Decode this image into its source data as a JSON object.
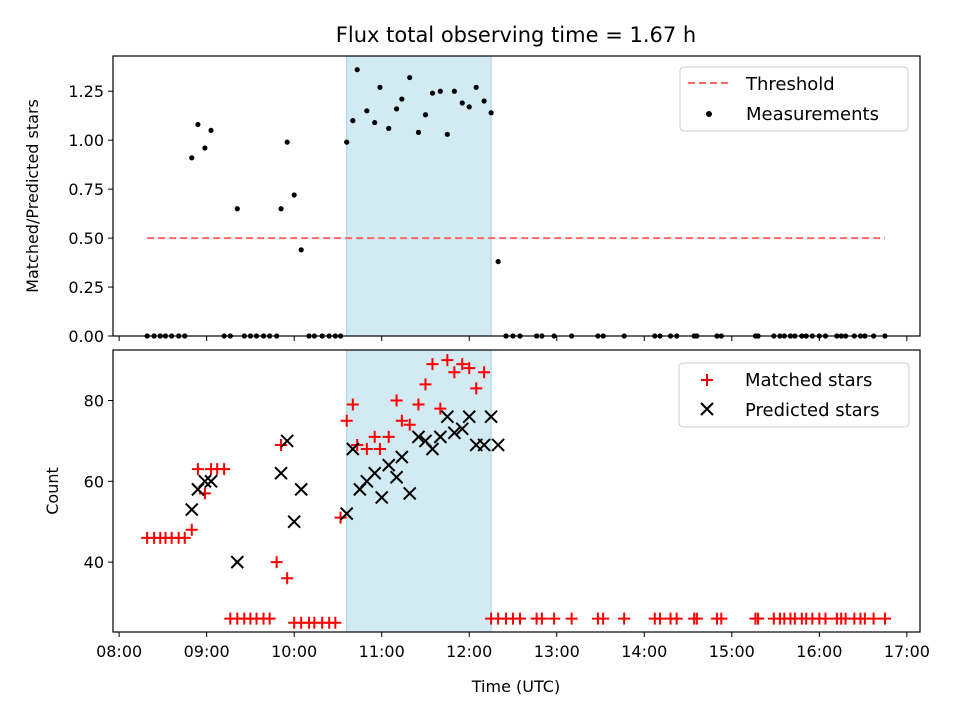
{
  "chart_data": {
    "title": "Flux total observing time = 1.67 h",
    "shaded_interval": {
      "start": 10.6,
      "end": 12.25,
      "color": "#add8e6"
    },
    "xlabel": "Time (UTC)",
    "xlim": [
      7.93,
      17.15
    ],
    "xticks": [
      {
        "value": 8,
        "label": "08:00"
      },
      {
        "value": 9,
        "label": "09:00"
      },
      {
        "value": 10,
        "label": "10:00"
      },
      {
        "value": 11,
        "label": "11:00"
      },
      {
        "value": 12,
        "label": "12:00"
      },
      {
        "value": 13,
        "label": "13:00"
      },
      {
        "value": 14,
        "label": "14:00"
      },
      {
        "value": 15,
        "label": "15:00"
      },
      {
        "value": 16,
        "label": "16:00"
      },
      {
        "value": 17,
        "label": "17:00"
      }
    ],
    "panels": [
      {
        "type": "scatter",
        "ylabel": "Matched/Predicted stars",
        "ylim": [
          0,
          1.43
        ],
        "yticks": [
          {
            "value": 0,
            "label": "0.00"
          },
          {
            "value": 0.25,
            "label": "0.25"
          },
          {
            "value": 0.5,
            "label": "0.50"
          },
          {
            "value": 0.75,
            "label": "0.75"
          },
          {
            "value": 1.0,
            "label": "1.00"
          },
          {
            "value": 1.25,
            "label": "1.25"
          }
        ],
        "legend": [
          "Threshold",
          "Measurements"
        ],
        "legend_position": "upper-right",
        "threshold": {
          "name": "Threshold",
          "y": 0.5,
          "x": [
            8.32,
            16.75
          ],
          "color": "#ff6666",
          "style": "dashed"
        },
        "series": [
          {
            "name": "Measurements",
            "color": "#000000",
            "marker": "dot",
            "x": [
              8.32,
              8.4,
              8.47,
              8.53,
              8.6,
              8.68,
              8.75,
              8.83,
              8.9,
              8.98,
              9.05,
              9.2,
              9.27,
              9.35,
              9.43,
              9.5,
              9.57,
              9.65,
              9.72,
              9.8,
              9.85,
              9.92,
              10.0,
              10.08,
              10.17,
              10.23,
              10.32,
              10.4,
              10.47,
              10.53,
              10.6,
              10.67,
              10.72,
              10.83,
              10.92,
              10.98,
              11.08,
              11.17,
              11.23,
              11.32,
              11.42,
              11.5,
              11.58,
              11.67,
              11.75,
              11.83,
              11.92,
              12.0,
              12.08,
              12.17,
              12.25,
              12.33,
              12.42,
              12.5,
              12.58,
              12.77,
              12.83,
              12.97,
              13.17,
              13.47,
              13.53,
              13.77,
              14.12,
              14.18,
              14.3,
              14.37,
              14.57,
              14.6,
              14.83,
              14.88,
              15.27,
              15.3,
              15.48,
              15.55,
              15.6,
              15.67,
              15.72,
              15.8,
              15.85,
              15.92,
              16.0,
              16.07,
              16.2,
              16.25,
              16.3,
              16.4,
              16.47,
              16.52,
              16.62,
              16.75
            ],
            "y": [
              0,
              0,
              0,
              0,
              0,
              0,
              0,
              0.91,
              1.08,
              0.96,
              1.05,
              0,
              0,
              0.65,
              0,
              0,
              0,
              0,
              0,
              0,
              0.65,
              0.99,
              0.72,
              0.44,
              0,
              0,
              0,
              0,
              0,
              0,
              0.99,
              1.1,
              1.36,
              1.15,
              1.09,
              1.27,
              1.06,
              1.16,
              1.21,
              1.32,
              1.04,
              1.13,
              1.24,
              1.25,
              1.03,
              1.25,
              1.19,
              1.17,
              1.27,
              1.2,
              1.14,
              0.38,
              0,
              0,
              0,
              0,
              0,
              0,
              0,
              0,
              0,
              0,
              0,
              0,
              0,
              0,
              0,
              0,
              0,
              0,
              0,
              0,
              0,
              0,
              0,
              0,
              0,
              0,
              0,
              0,
              0,
              0,
              0,
              0,
              0,
              0,
              0,
              0,
              0,
              0
            ]
          }
        ]
      },
      {
        "type": "scatter",
        "ylabel": "Count",
        "ylim": [
          22.7,
          92.5
        ],
        "yticks": [
          {
            "value": 40,
            "label": "40"
          },
          {
            "value": 60,
            "label": "60"
          },
          {
            "value": 80,
            "label": "80"
          }
        ],
        "legend": [
          "Matched stars",
          "Predicted stars"
        ],
        "legend_position": "upper-right",
        "series": [
          {
            "name": "Matched stars",
            "color": "#ff0000",
            "marker": "plus",
            "x": [
              8.32,
              8.4,
              8.47,
              8.53,
              8.6,
              8.68,
              8.75,
              8.83,
              8.9,
              8.98,
              9.05,
              9.12,
              9.2,
              9.27,
              9.35,
              9.43,
              9.5,
              9.57,
              9.65,
              9.72,
              9.8,
              9.85,
              9.92,
              10.0,
              10.08,
              10.17,
              10.23,
              10.32,
              10.4,
              10.47,
              10.53,
              10.6,
              10.67,
              10.72,
              10.83,
              10.92,
              10.98,
              11.08,
              11.17,
              11.23,
              11.32,
              11.42,
              11.5,
              11.58,
              11.67,
              11.75,
              11.83,
              11.92,
              12.0,
              12.08,
              12.17,
              12.25,
              12.33,
              12.42,
              12.5,
              12.58,
              12.77,
              12.83,
              12.97,
              13.17,
              13.47,
              13.53,
              13.77,
              14.12,
              14.18,
              14.3,
              14.37,
              14.57,
              14.6,
              14.83,
              14.88,
              15.27,
              15.3,
              15.48,
              15.55,
              15.6,
              15.67,
              15.72,
              15.8,
              15.85,
              15.92,
              16.0,
              16.07,
              16.2,
              16.25,
              16.3,
              16.4,
              16.47,
              16.52,
              16.62,
              16.75
            ],
            "y": [
              46,
              46,
              46,
              46,
              46,
              46,
              46,
              48,
              63,
              57,
              63,
              63,
              63,
              26,
              26,
              26,
              26,
              26,
              26,
              26,
              40,
              69,
              36,
              25,
              25,
              25,
              25,
              25,
              25,
              25,
              51,
              75,
              79,
              69,
              68,
              71,
              68,
              71,
              80,
              75,
              74,
              79,
              84,
              89,
              78,
              90,
              87,
              89,
              88,
              83,
              87,
              26,
              26,
              26,
              26,
              26,
              26,
              26,
              26,
              26,
              26,
              26,
              26,
              26,
              26,
              26,
              26,
              26,
              26,
              26,
              26,
              26,
              26,
              26,
              26,
              26,
              26,
              26,
              26,
              26,
              26,
              26,
              26,
              26,
              26,
              26,
              26,
              26,
              26,
              26,
              26
            ]
          },
          {
            "name": "Predicted stars",
            "color": "#000000",
            "marker": "x",
            "x": [
              8.83,
              8.9,
              8.98,
              9.05,
              9.35,
              9.85,
              9.92,
              10.0,
              10.08,
              10.6,
              10.67,
              10.75,
              10.83,
              10.92,
              11.0,
              11.08,
              11.17,
              11.23,
              11.32,
              11.42,
              11.5,
              11.58,
              11.67,
              11.75,
              11.83,
              11.92,
              12.0,
              12.08,
              12.17,
              12.25,
              12.33
            ],
            "y": [
              53,
              58,
              60,
              60,
              40,
              62,
              70,
              50,
              58,
              52,
              68,
              58,
              60,
              62,
              56,
              64,
              61,
              66,
              57,
              71,
              70,
              68,
              71,
              76,
              72,
              73,
              76,
              69,
              69,
              76,
              69
            ]
          }
        ]
      }
    ]
  }
}
